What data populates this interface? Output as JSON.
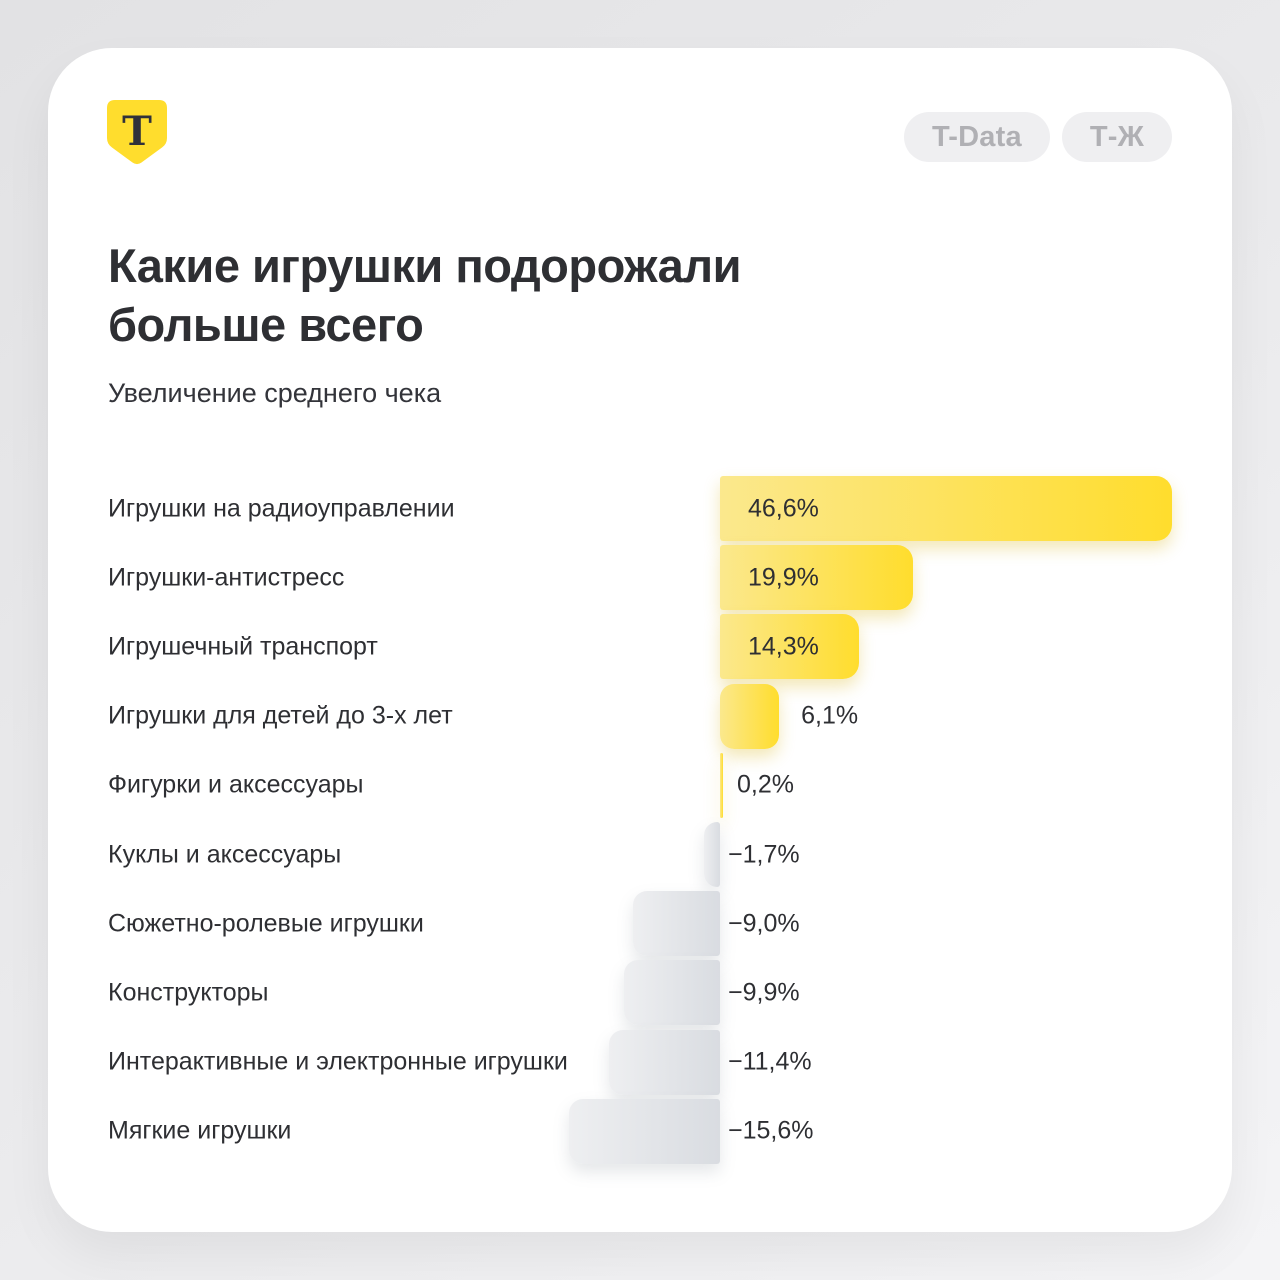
{
  "logo": {
    "letter": "Т"
  },
  "badges": [
    "T-Data",
    "Т-Ж"
  ],
  "header": {
    "title_line1": "Какие игрушки подорожали",
    "title_line2": "больше всего",
    "subtitle": "Увеличение среднего чека"
  },
  "colors": {
    "brand_yellow": "#ffdd2d",
    "bar_positive_gradient": [
      "#fbe88d",
      "#ffdd2d"
    ],
    "bar_negative_gradient": [
      "#eeeff1",
      "#d9dce1"
    ],
    "text_dark": "#2e2f33",
    "badge_bg": "#efeff1",
    "badge_text": "#b0b0b4",
    "card_bg": "#ffffff",
    "page_bg": "#e9e9eb"
  },
  "chart_data": {
    "type": "bar",
    "orientation": "horizontal",
    "title": "Какие игрушки подорожали больше всего",
    "subtitle": "Увеличение среднего чека",
    "xlabel": "Увеличение среднего чека, %",
    "xlim": [
      -16,
      47
    ],
    "grid": false,
    "legend": "none",
    "categories": [
      "Игрушки на радиоуправлении",
      "Игрушки-антистресс",
      "Игрушечный транспорт",
      "Игрушки для детей до 3-х лет",
      "Фигурки и аксессуары",
      "Куклы и аксессуары",
      "Сюжетно-ролевые игрушки",
      "Конструкторы",
      "Интерактивные и электронные игрушки",
      "Мягкие игрушки"
    ],
    "values": [
      46.6,
      19.9,
      14.3,
      6.1,
      0.2,
      -1.7,
      -9.0,
      -9.9,
      -11.4,
      -15.6
    ],
    "value_labels": [
      "46,6%",
      "19,9%",
      "14,3%",
      "6,1%",
      "0,2%",
      "−1,7%",
      "−9,0%",
      "−9,9%",
      "−11,4%",
      "−15,6%"
    ]
  }
}
